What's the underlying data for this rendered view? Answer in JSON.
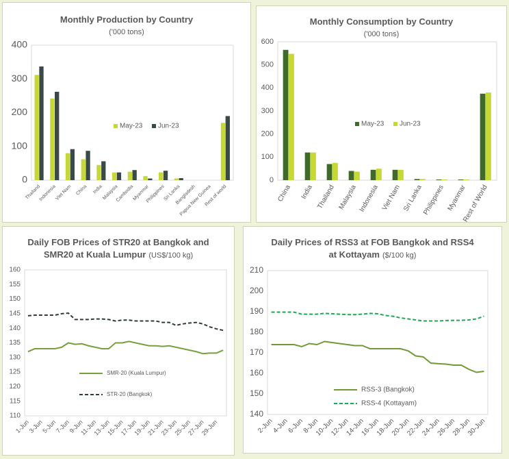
{
  "chart_data": [
    {
      "type": "bar",
      "title": "Monthly Production by Country",
      "subtitle": "('000 tons)",
      "categories": [
        "Thailand",
        "Indonesia",
        "Viet Nam",
        "China",
        "India",
        "Malaysia",
        "Cambodia",
        "Myanmar",
        "Philippines",
        "Sri Lanka",
        "Bangladesh",
        "Papua New Guinea",
        "Rest of world"
      ],
      "series": [
        {
          "name": "May-23",
          "color": "#c5d932",
          "values": [
            312,
            242,
            80,
            62,
            45,
            23,
            25,
            12,
            23,
            5,
            0,
            0,
            170
          ]
        },
        {
          "name": "Jun-23",
          "color": "#3a4a4a",
          "values": [
            337,
            262,
            92,
            87,
            56,
            23,
            30,
            5,
            28,
            6,
            0,
            0,
            190
          ]
        }
      ],
      "ylim": [
        0,
        400
      ],
      "yticks": [
        0,
        100,
        200,
        300,
        400
      ],
      "grid": false
    },
    {
      "type": "bar",
      "title": "Monthly Consumption by Country",
      "subtitle": "('000 tons)",
      "categories": [
        "China",
        "India",
        "Thailand",
        "Malaysia",
        "Indonesia",
        "Viet Nam",
        "Sri Lanka",
        "Philippines",
        "Myanmar",
        "Rest of World"
      ],
      "series": [
        {
          "name": "May-23",
          "color": "#3f6a2a",
          "values": [
            565,
            120,
            70,
            40,
            45,
            45,
            5,
            3,
            3,
            375
          ]
        },
        {
          "name": "Jun-23",
          "color": "#c5d932",
          "values": [
            548,
            120,
            75,
            37,
            50,
            45,
            5,
            3,
            3,
            380
          ]
        }
      ],
      "ylim": [
        0,
        600
      ],
      "yticks": [
        0,
        100,
        200,
        300,
        400,
        500,
        600
      ],
      "grid": false
    },
    {
      "type": "line",
      "title": "Daily FOB Prices of STR20 at Bangkok and SMR20 at Kuala Lumpur",
      "subtitle": "(US$/100 kg)",
      "categories": [
        "1-Jun",
        null,
        "3-Jun",
        null,
        "5-Jun",
        null,
        "7-Jun",
        null,
        "9-Jun",
        null,
        "11-Jun",
        null,
        "13-Jun",
        null,
        "15-Jun",
        null,
        "17-Jun",
        null,
        "19-Jun",
        null,
        "21-Jun",
        null,
        "23-Jun",
        null,
        "25-Jun",
        null,
        "27-Jun",
        null,
        "29-Jun",
        null
      ],
      "series": [
        {
          "name": "SMR-20 (Kuala Lumpur)",
          "color": "#77a03a",
          "dashed": false,
          "values": [
            132,
            133,
            133,
            133,
            133,
            133.5,
            135,
            134.5,
            134.7,
            134,
            133.5,
            133,
            133,
            135,
            135,
            135.5,
            135,
            134.5,
            134,
            134,
            133.8,
            134,
            133.5,
            133,
            132.5,
            132,
            131.3,
            131.5,
            131.5,
            132.5
          ]
        },
        {
          "name": "STR-20 (Bangkok)",
          "color": "#2f3b3b",
          "dashed": true,
          "values": [
            144.3,
            144.5,
            144.5,
            144.5,
            144.5,
            145,
            145.2,
            143,
            143,
            143,
            143.2,
            143.2,
            143,
            142.5,
            142.8,
            142.8,
            142.5,
            142.5,
            142.5,
            142.5,
            142,
            142,
            141,
            141.5,
            141.8,
            142,
            141.5,
            140.5,
            139.8,
            139.3
          ]
        }
      ],
      "ylim": [
        110,
        160
      ],
      "yticks": [
        110,
        115,
        120,
        125,
        130,
        135,
        140,
        145,
        150,
        155,
        160
      ],
      "grid": false
    },
    {
      "type": "line",
      "title": "Daily Prices of RSS3 at FOB Bangkok and RSS4 at Kottayam",
      "subtitle": "($/100 kg)",
      "categories": [
        "2-Jun",
        null,
        "4-Jun",
        null,
        "6-Jun",
        null,
        "8-Jun",
        null,
        "10-Jun",
        null,
        "12-Jun",
        null,
        "14-Jun",
        null,
        "16-Jun",
        null,
        "18-Jun",
        null,
        "20-Jun",
        null,
        "22-Jun",
        null,
        "24-Jun",
        null,
        "26-Jun",
        null,
        "28-Jun",
        null,
        "30-Jun"
      ],
      "series": [
        {
          "name": "RSS-3 (Bangkok)",
          "color": "#6f9a35",
          "dashed": false,
          "values": [
            174,
            174,
            174,
            174,
            173,
            174.5,
            174,
            175.5,
            175,
            174.5,
            174,
            173.5,
            173.5,
            172,
            172,
            172,
            172,
            172,
            171,
            168.5,
            168,
            165,
            164.7,
            164.5,
            164,
            164,
            162,
            160.5,
            161
          ]
        },
        {
          "name": "RSS-4 (Kottayam)",
          "color": "#1aaa50",
          "dashed": true,
          "values": [
            189.8,
            189.8,
            189.8,
            189.8,
            188.8,
            188.8,
            188.8,
            189.2,
            189,
            188.8,
            188.6,
            188.6,
            188.8,
            189.2,
            189,
            188.2,
            187.8,
            187,
            186.5,
            186,
            185.5,
            185.5,
            185.5,
            185.7,
            185.8,
            185.8,
            186,
            186.5,
            187.8
          ]
        }
      ],
      "ylim": [
        140,
        210
      ],
      "yticks": [
        140,
        150,
        160,
        170,
        180,
        190,
        200,
        210
      ],
      "grid": false
    }
  ]
}
